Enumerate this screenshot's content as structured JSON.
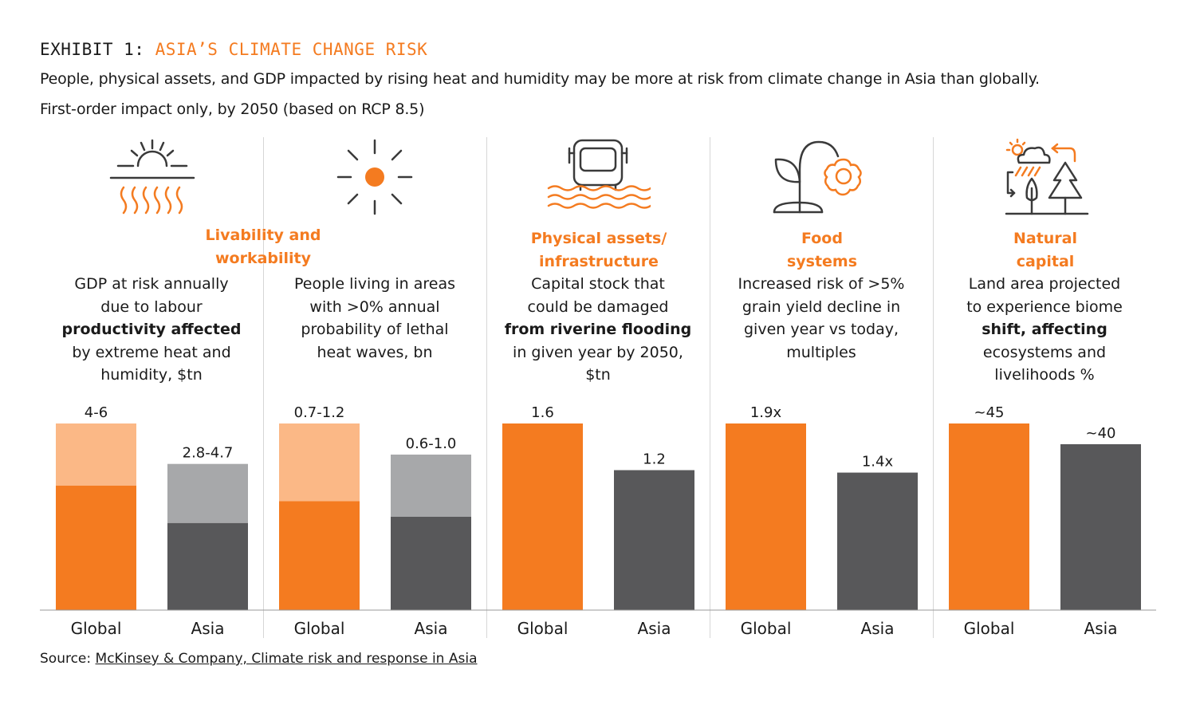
{
  "exhibit": {
    "label": "EXHIBIT 1:",
    "title": "ASIA’S CLIMATE CHANGE RISK"
  },
  "subtitle": "People, physical assets, and GDP impacted by rising heat and humidity may be more at risk from climate change in Asia than globally.",
  "note": "First-order impact only, by 2050 (based on RCP 8.5)",
  "colors": {
    "global": "#f47b20",
    "global_range": "#fbb886",
    "asia": "#58585a",
    "asia_range": "#a7a8aa",
    "accent": "#f47b20"
  },
  "categories": [
    {
      "label_line1": "Livability and",
      "label_line2": "workability"
    },
    {
      "label_line1": "Physical assets/",
      "label_line2": "infrastructure"
    },
    {
      "label_line1": "Food",
      "label_line2": "systems"
    },
    {
      "label_line1": "Natural",
      "label_line2": "capital"
    }
  ],
  "icons": [
    "heat-humidity-icon",
    "sun-icon",
    "flooded-vehicle-icon",
    "plant-flower-icon",
    "weather-ecosystem-icon"
  ],
  "panels": [
    {
      "desc": [
        {
          "text": "GDP at risk annually"
        },
        {
          "text": "due to labour"
        },
        {
          "text": "productivity affected",
          "bold": true
        },
        {
          "text": "by extreme heat and"
        },
        {
          "text": "humidity, $tn"
        }
      ]
    },
    {
      "desc": [
        {
          "text": "People living in areas"
        },
        {
          "text": "with >0% annual"
        },
        {
          "text": "probability of lethal"
        },
        {
          "text": "heat waves, bn"
        }
      ]
    },
    {
      "desc": [
        {
          "text": "Capital stock that"
        },
        {
          "text": "could be damaged"
        },
        {
          "text": "from riverine flooding",
          "bold": true
        },
        {
          "text": "in given year by 2050,"
        },
        {
          "text": "$tn"
        }
      ]
    },
    {
      "desc": [
        {
          "text": "Increased risk of >5%"
        },
        {
          "text": "grain yield decline in"
        },
        {
          "text": "given year vs today,"
        },
        {
          "text": "multiples"
        }
      ]
    },
    {
      "desc": [
        {
          "text": "Land area projected"
        },
        {
          "text": "to experience biome"
        },
        {
          "text": "shift, affecting",
          "bold": true
        },
        {
          "text": "ecosystems and"
        },
        {
          "text": "livelihoods %"
        }
      ]
    }
  ],
  "chart_data": [
    {
      "type": "bar",
      "categories": [
        "Global",
        "Asia"
      ],
      "series": [
        {
          "name": "Global",
          "low": 4,
          "high": 6,
          "label": "4-6"
        },
        {
          "name": "Asia",
          "low": 2.8,
          "high": 4.7,
          "label": "2.8-4.7"
        }
      ],
      "ylim": [
        0,
        6
      ]
    },
    {
      "type": "bar",
      "categories": [
        "Global",
        "Asia"
      ],
      "series": [
        {
          "name": "Global",
          "low": 0.7,
          "high": 1.2,
          "label": "0.7-1.2"
        },
        {
          "name": "Asia",
          "low": 0.6,
          "high": 1.0,
          "label": "0.6-1.0"
        }
      ],
      "ylim": [
        0,
        1.2
      ]
    },
    {
      "type": "bar",
      "categories": [
        "Global",
        "Asia"
      ],
      "series": [
        {
          "name": "Global",
          "value": 1.6,
          "label": "1.6"
        },
        {
          "name": "Asia",
          "value": 1.2,
          "label": "1.2"
        }
      ],
      "ylim": [
        0,
        1.6
      ]
    },
    {
      "type": "bar",
      "categories": [
        "Global",
        "Asia"
      ],
      "series": [
        {
          "name": "Global",
          "value": 1.9,
          "label": "1.9x"
        },
        {
          "name": "Asia",
          "value": 1.4,
          "label": "1.4x"
        }
      ],
      "ylim": [
        0,
        1.9
      ]
    },
    {
      "type": "bar",
      "categories": [
        "Global",
        "Asia"
      ],
      "series": [
        {
          "name": "Global",
          "value": 45,
          "label": "~45"
        },
        {
          "name": "Asia",
          "value": 40,
          "label": "~40"
        }
      ],
      "ylim": [
        0,
        45
      ]
    }
  ],
  "source": {
    "label": "Source:",
    "link_text": "McKinsey & Company, Climate risk and response in Asia"
  }
}
